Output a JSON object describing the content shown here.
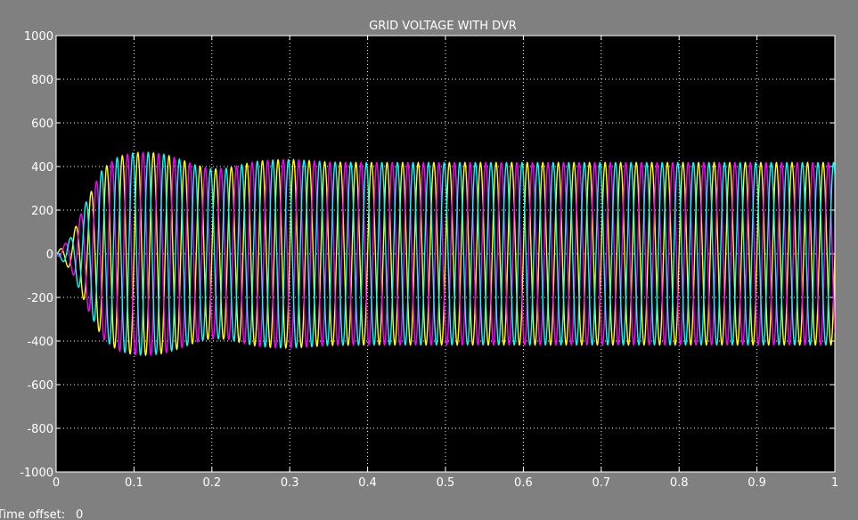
{
  "footer": {
    "time_offset_label": "Time offset:",
    "time_offset_value": "0"
  },
  "colors": {
    "background": "#808080",
    "plot_background": "#000000",
    "grid": "#ffffff",
    "text": "#ffffff"
  },
  "chart_data": {
    "type": "line",
    "title": "GRID VOLTAGE WITH DVR",
    "xlabel": "",
    "ylabel": "",
    "xlim": [
      0,
      1
    ],
    "ylim": [
      -1000,
      1000
    ],
    "xticks": [
      0,
      0.1,
      0.2,
      0.3,
      0.4,
      0.5,
      0.6,
      0.7,
      0.8,
      0.9,
      1
    ],
    "xtick_labels": [
      "0",
      "0.1",
      "0.2",
      "0.3",
      "0.4",
      "0.5",
      "0.6",
      "0.7",
      "0.8",
      "0.9",
      "1"
    ],
    "yticks": [
      1000,
      800,
      600,
      400,
      200,
      0,
      -200,
      -400,
      -600,
      -800,
      -1000
    ],
    "ytick_labels": [
      "1000",
      "800",
      "600",
      "400",
      "200",
      "0",
      "-200",
      "-400",
      "-600",
      "-800",
      "-1000"
    ],
    "grid": true,
    "grid_style": "dotted",
    "waveform": {
      "phases": 3,
      "frequency_hz": 50,
      "phase_offsets_deg": [
        0,
        -120,
        120
      ]
    },
    "envelope": {
      "x": [
        0,
        0.02,
        0.04,
        0.06,
        0.08,
        0.1,
        0.12,
        0.14,
        0.16,
        0.18,
        0.2,
        0.22,
        0.24,
        0.26,
        0.28,
        0.3,
        0.32,
        0.35,
        0.4,
        0.5,
        0.6,
        0.7,
        0.8,
        0.9,
        1.0
      ],
      "y": [
        0,
        80,
        250,
        390,
        445,
        463,
        465,
        455,
        432,
        405,
        388,
        392,
        410,
        425,
        430,
        432,
        428,
        420,
        418,
        418,
        418,
        418,
        418,
        418,
        418
      ]
    },
    "series": [
      {
        "name": "",
        "color": "#ffff00"
      },
      {
        "name": "",
        "color": "#ff00ff"
      },
      {
        "name": "",
        "color": "#00ffff"
      }
    ]
  }
}
